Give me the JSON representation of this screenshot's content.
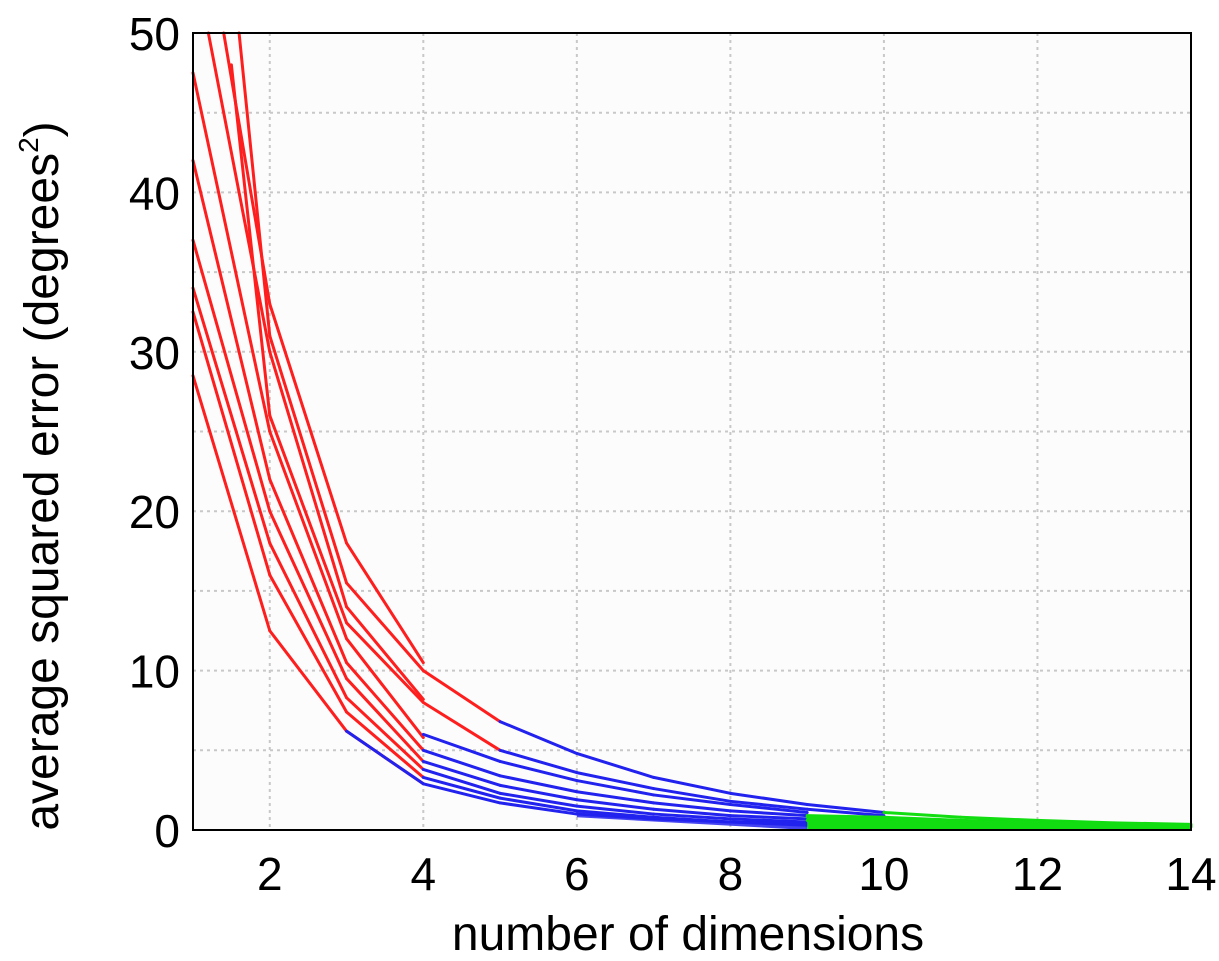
{
  "chart_data": {
    "type": "line",
    "xlabel": "number of dimensions",
    "ylabel_main": "average squared error  (degrees",
    "ylabel_sup": "2",
    "ylabel_close": ")",
    "xlim": [
      1,
      14
    ],
    "ylim": [
      0,
      50
    ],
    "xticks": [
      2,
      4,
      6,
      8,
      10,
      12,
      14
    ],
    "yticks": [
      0,
      10,
      20,
      30,
      40,
      50
    ],
    "grid": true,
    "colors": {
      "red": "#ff1e1e",
      "blue": "#2222ee",
      "green": "#11dd11"
    },
    "series": [
      {
        "x": [
          1.4,
          2,
          3,
          4
        ],
        "y": [
          50,
          33,
          18,
          10.5
        ]
      },
      {
        "x": [
          1.2,
          2,
          3,
          4
        ],
        "y": [
          50,
          30,
          14,
          8.2
        ]
      },
      {
        "x": [
          1,
          2,
          3,
          4
        ],
        "y": [
          47.5,
          25,
          12,
          5.8
        ]
      },
      {
        "x": [
          1,
          2,
          3,
          4
        ],
        "y": [
          42,
          22,
          10.5,
          5
        ]
      },
      {
        "x": [
          1,
          2,
          3,
          4
        ],
        "y": [
          37,
          20,
          9.5,
          4.3
        ]
      },
      {
        "x": [
          1,
          2,
          3,
          4
        ],
        "y": [
          34,
          18,
          8.3,
          3.8
        ]
      },
      {
        "x": [
          1,
          2,
          3,
          4
        ],
        "y": [
          32.5,
          16,
          7.4,
          3.3
        ]
      },
      {
        "x": [
          1,
          2,
          3,
          4
        ],
        "y": [
          28.5,
          12.5,
          6.2,
          2.9
        ]
      },
      {
        "x": [
          1.5,
          2,
          3,
          4,
          5
        ],
        "y": [
          48,
          26,
          13,
          8,
          5
        ]
      },
      {
        "x": [
          1.6,
          2,
          3,
          4,
          5
        ],
        "y": [
          50,
          31,
          15.5,
          10,
          6.8
        ]
      },
      {
        "x": [
          5,
          6,
          7,
          8,
          9,
          10
        ],
        "y": [
          6.8,
          4.8,
          3.3,
          2.3,
          1.6,
          1.1
        ]
      },
      {
        "x": [
          5,
          6,
          7,
          8,
          9,
          10
        ],
        "y": [
          5,
          3.6,
          2.6,
          1.8,
          1.3,
          0.9
        ]
      },
      {
        "x": [
          4,
          5,
          6,
          7,
          8,
          9
        ],
        "y": [
          6,
          4.3,
          3.1,
          2.2,
          1.6,
          1.1
        ]
      },
      {
        "x": [
          4,
          5,
          6,
          7,
          8,
          9
        ],
        "y": [
          5,
          3.4,
          2.4,
          1.7,
          1.2,
          0.9
        ]
      },
      {
        "x": [
          4,
          5,
          6,
          7,
          8,
          9
        ],
        "y": [
          4.3,
          2.8,
          1.9,
          1.3,
          0.9,
          0.7
        ]
      },
      {
        "x": [
          4,
          5,
          6,
          7,
          8,
          9
        ],
        "y": [
          3.8,
          2.3,
          1.5,
          1,
          0.7,
          0.5
        ]
      },
      {
        "x": [
          4,
          5,
          6,
          7,
          8,
          9
        ],
        "y": [
          3.3,
          2,
          1.2,
          0.8,
          0.5,
          0.4
        ]
      },
      {
        "x": [
          3,
          4,
          5,
          6,
          7,
          8,
          9
        ],
        "y": [
          6.2,
          2.9,
          1.7,
          1,
          0.7,
          0.5,
          0.3
        ]
      },
      {
        "x": [
          9,
          10,
          11,
          12,
          13,
          14
        ],
        "y": [
          0.9,
          0.8,
          0.6,
          0.5,
          0.4,
          0.3
        ]
      },
      {
        "x": [
          9,
          10,
          11,
          12,
          13,
          14
        ],
        "y": [
          0.8,
          0.6,
          0.5,
          0.4,
          0.3,
          0.25
        ]
      },
      {
        "x": [
          9,
          10,
          11,
          12,
          13,
          14
        ],
        "y": [
          0.6,
          0.5,
          0.4,
          0.3,
          0.25,
          0.2
        ]
      },
      {
        "x": [
          10,
          11,
          12,
          13,
          14
        ],
        "y": [
          1.1,
          0.8,
          0.6,
          0.45,
          0.35
        ]
      }
    ]
  }
}
